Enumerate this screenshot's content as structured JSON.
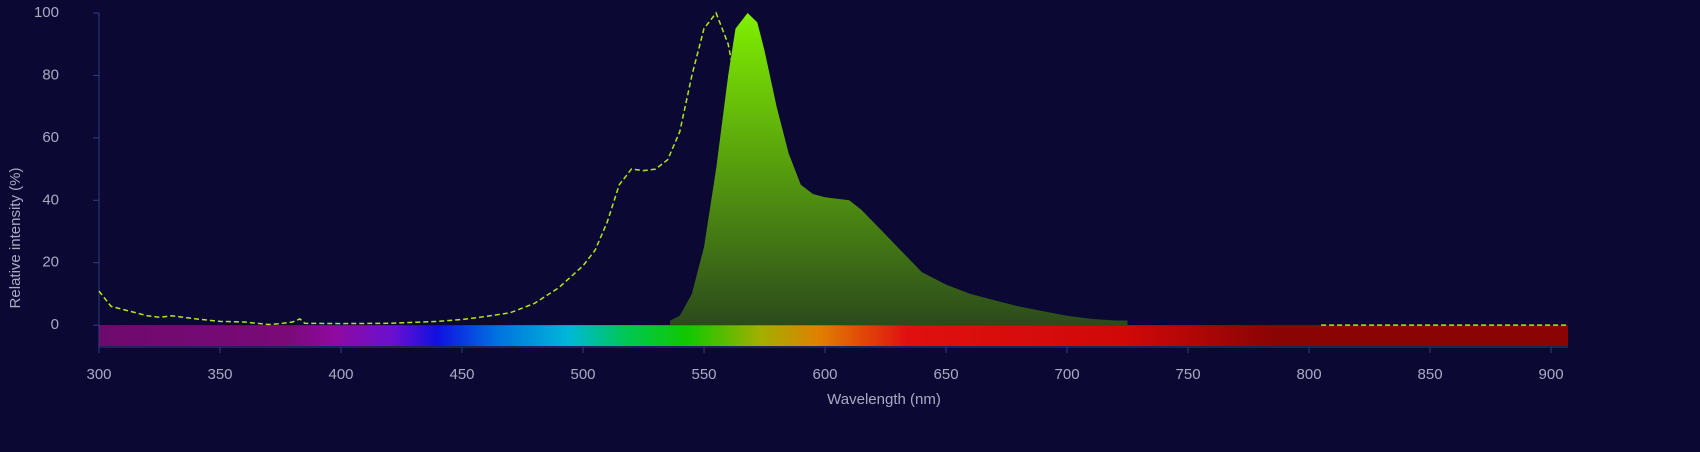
{
  "chart_data": {
    "type": "line",
    "xlabel": "Wavelength (nm)",
    "ylabel": "Relative intensity (%)",
    "xlim": [
      300,
      907
    ],
    "ylim": [
      -7,
      100
    ],
    "xticks": [
      300,
      350,
      400,
      450,
      500,
      550,
      600,
      650,
      700,
      750,
      800,
      850,
      900
    ],
    "yticks": [
      0,
      20,
      40,
      60,
      80,
      100
    ],
    "series": [
      {
        "color": "#b5e41c",
        "dashed": true,
        "fill": false,
        "x": [
          300,
          305,
          310,
          320,
          325,
          330,
          340,
          350,
          360,
          370,
          375,
          380,
          383,
          385,
          400,
          420,
          440,
          450,
          460,
          470,
          480,
          490,
          500,
          505,
          510,
          515,
          520,
          525,
          530,
          535,
          540,
          545,
          550,
          555,
          560,
          565,
          570,
          575,
          580,
          585,
          590,
          595,
          600,
          700,
          805,
          850,
          907
        ],
        "values": [
          10.9,
          6,
          5,
          3,
          2.5,
          3,
          2,
          1.2,
          1,
          0.2,
          0.5,
          1,
          2,
          0.6,
          0.5,
          0.6,
          1.2,
          1.8,
          2.8,
          4,
          7,
          12,
          19,
          24,
          33,
          45,
          50,
          49.5,
          50,
          53,
          62,
          80,
          95,
          100,
          90,
          70,
          45,
          25,
          12,
          6,
          3,
          2,
          1.5,
          null,
          0,
          0,
          0
        ]
      },
      {
        "color": "#80f000",
        "dashed": false,
        "fill": true,
        "x": [
          536,
          540,
          545,
          550,
          555,
          560,
          563,
          568,
          572,
          575,
          580,
          585,
          590,
          595,
          600,
          605,
          610,
          615,
          620,
          630,
          640,
          650,
          660,
          670,
          680,
          690,
          700,
          710,
          720,
          725
        ],
        "values": [
          1.5,
          3,
          10,
          25,
          50,
          80,
          95,
          100,
          97,
          88,
          70,
          55,
          45,
          42,
          41,
          40.5,
          40,
          37,
          33,
          25,
          17,
          13,
          10,
          8,
          6,
          4.5,
          3,
          2,
          1.5,
          1.5
        ]
      }
    ]
  }
}
